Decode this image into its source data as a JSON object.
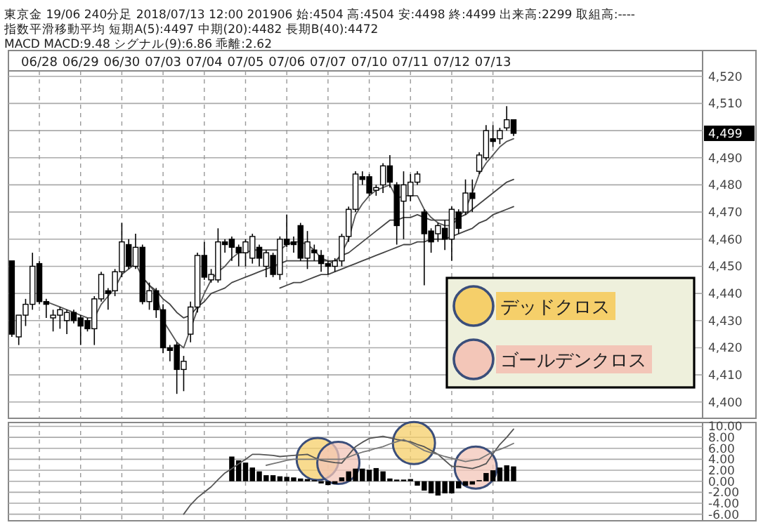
{
  "chart_data": [
    {
      "type": "candlestick",
      "title": "東京金 19/06 240分足 2018/07/13 12:00 201906 始:4504 高:4504 安:4498 終:4499 出来高:2299 取組高:----",
      "subtitle": "指数平滑移動平均 短期A(5):4497 中期(20):4482 長期B(40):4472",
      "annotations": [
        "MACD MACD:9.48 シグナル(9):6.86 乖離:2.62",
        "4,499",
        "デッドクロス",
        "ゴールデンクロス"
      ],
      "categories": [
        null,
        null,
        null,
        null,
        "06/28",
        null,
        null,
        null,
        null,
        null,
        "06/29",
        null,
        null,
        null,
        null,
        null,
        "06/30",
        null,
        null,
        null,
        null,
        null,
        "07/03",
        null,
        null,
        null,
        null,
        null,
        "07/04",
        null,
        null,
        null,
        null,
        null,
        "07/05",
        null,
        null,
        null,
        null,
        null,
        "07/06",
        null,
        null,
        null,
        null,
        null,
        "07/07",
        null,
        null,
        null,
        null,
        null,
        "07/10",
        null,
        null,
        null,
        null,
        null,
        "07/11",
        null,
        null,
        null,
        null,
        null,
        "07/12",
        null,
        null,
        null,
        null,
        null,
        "07/13",
        null,
        null,
        null,
        null,
        null,
        null,
        null,
        null,
        null,
        null,
        null,
        null,
        null,
        null,
        null,
        null,
        null,
        null,
        null,
        null,
        null,
        null,
        null,
        null,
        null,
        null,
        null,
        null,
        null,
        null
      ],
      "color": "#000000",
      "ohlc": [
        [
          4452,
          4452,
          4424,
          4425
        ],
        [
          4424,
          4432,
          4421,
          4432
        ],
        [
          4432,
          4438,
          4428,
          4436
        ],
        [
          4436,
          4455,
          4434,
          4450
        ],
        [
          4451,
          4452,
          4436,
          4437
        ],
        [
          4437,
          4438,
          4431,
          4436
        ],
        [
          4431,
          4434,
          4426,
          4432
        ],
        [
          4432,
          4435,
          4427,
          4434
        ],
        [
          4430,
          4434,
          4425,
          4433
        ],
        [
          4433,
          4434,
          4429,
          4430
        ],
        [
          4431,
          4432,
          4421,
          4428
        ],
        [
          4430,
          4431,
          4426,
          4427
        ],
        [
          4427,
          4439,
          4421,
          4438
        ],
        [
          4438,
          4448,
          4437,
          4447
        ],
        [
          4441,
          4442,
          4434,
          4440
        ],
        [
          4441,
          4449,
          4439,
          4448
        ],
        [
          4448,
          4466,
          4446,
          4459
        ],
        [
          4458,
          4460,
          4449,
          4450
        ],
        [
          4450,
          4462,
          4449,
          4457
        ],
        [
          4457,
          4458,
          4436,
          4437
        ],
        [
          4437,
          4444,
          4434,
          4441
        ],
        [
          4441,
          4442,
          4431,
          4434
        ],
        [
          4434,
          4436,
          4418,
          4420
        ],
        [
          4420,
          4421,
          4415,
          4419
        ],
        [
          4421,
          4422,
          4403,
          4412
        ],
        [
          4412,
          4417,
          4404,
          4415
        ],
        [
          4425,
          4437,
          4422,
          4435
        ],
        [
          4435,
          4455,
          4433,
          4454
        ],
        [
          4454,
          4459,
          4445,
          4446
        ],
        [
          4445,
          4449,
          4444,
          4447
        ],
        [
          4445,
          4464,
          4444,
          4459
        ],
        [
          4459,
          4460,
          4455,
          4458
        ],
        [
          4460,
          4461,
          4452,
          4457
        ],
        [
          4457,
          4458,
          4450,
          4455
        ],
        [
          4455,
          4460,
          4450,
          4459
        ],
        [
          4453,
          4462,
          4451,
          4461
        ],
        [
          4457,
          4458,
          4450,
          4453
        ],
        [
          4450,
          4456,
          4446,
          4455
        ],
        [
          4454,
          4455,
          4446,
          4447
        ],
        [
          4447,
          4461,
          4445,
          4460
        ],
        [
          4460,
          4469,
          4457,
          4458
        ],
        [
          4459,
          4461,
          4455,
          4458
        ],
        [
          4465,
          4466,
          4452,
          4453
        ],
        [
          4453,
          4463,
          4449,
          4459
        ],
        [
          4456,
          4458,
          4452,
          4455
        ],
        [
          4454,
          4456,
          4448,
          4451
        ],
        [
          4451,
          4452,
          4447,
          4450
        ],
        [
          4450,
          4453,
          4448,
          4452
        ],
        [
          4452,
          4462,
          4450,
          4461
        ],
        [
          4461,
          4472,
          4459,
          4471
        ],
        [
          4471,
          4485,
          4470,
          4484
        ],
        [
          4483,
          4485,
          4480,
          4482
        ],
        [
          4483,
          4484,
          4476,
          4477
        ],
        [
          4478,
          4480,
          4476,
          4479
        ],
        [
          4480,
          4488,
          4477,
          4487
        ],
        [
          4487,
          4491,
          4479,
          4481
        ],
        [
          4480,
          4481,
          4458,
          4465
        ],
        [
          4474,
          4485,
          4460,
          4480
        ],
        [
          4476,
          4484,
          4474,
          4481
        ],
        [
          4481,
          4485,
          4480,
          4484
        ],
        [
          4470,
          4471,
          4443,
          4462
        ],
        [
          4463,
          4464,
          4455,
          4459
        ],
        [
          4462,
          4466,
          4459,
          4465
        ],
        [
          4464,
          4467,
          4456,
          4460
        ],
        [
          4460,
          4472,
          4452,
          4471
        ],
        [
          4470,
          4471,
          4462,
          4464
        ],
        [
          4470,
          4482,
          4469,
          4477
        ],
        [
          4477,
          4482,
          4470,
          4475
        ],
        [
          4485,
          4492,
          4484,
          4491
        ],
        [
          4490,
          4502,
          4489,
          4500
        ],
        [
          4497,
          4502,
          4494,
          4496
        ],
        [
          4497,
          4501,
          4495,
          4500
        ],
        [
          4501,
          4509,
          4500,
          4504
        ],
        [
          4504,
          4504,
          4498,
          4499
        ],
        null,
        null,
        null,
        null,
        null,
        null,
        null,
        null,
        null,
        null,
        null,
        null,
        null,
        null,
        null,
        null,
        null,
        null,
        null,
        null,
        null,
        null,
        null,
        null,
        null,
        null,
        null
      ],
      "series": [
        {
          "type": "line",
          "color": "#555555",
          "values": [
            null,
            null,
            null,
            null,
            null,
            4437,
            4436,
            4435,
            4434,
            4433,
            4432,
            4431,
            4431,
            4436,
            4439,
            4442,
            4447,
            4449,
            4451,
            4446,
            4443,
            4440,
            4430,
            4426,
            4422,
            4420,
            4427,
            4434,
            4440,
            4445,
            4448,
            4450,
            4453,
            4455,
            4455,
            4456,
            4456,
            4456,
            4456,
            4456,
            4458,
            4459,
            4459,
            4458,
            4456,
            4453,
            4452,
            4451,
            4455,
            4460,
            4469,
            4473,
            4476,
            4478,
            4479,
            4480,
            4475,
            4476,
            4476,
            4476,
            4471,
            4468,
            4466,
            4465,
            4465,
            4468,
            4471,
            4477,
            4484,
            4488,
            4491,
            4494,
            4496,
            4497,
            null,
            null,
            null,
            null,
            null,
            null,
            null,
            null,
            null,
            null,
            null,
            null,
            null,
            null,
            null,
            null,
            null,
            null,
            null,
            null,
            null,
            null,
            null,
            null,
            null,
            null,
            null
          ]
        },
        {
          "type": "line",
          "color": "#444444",
          "values": [
            null,
            null,
            null,
            null,
            null,
            null,
            null,
            null,
            null,
            null,
            null,
            null,
            null,
            null,
            null,
            null,
            null,
            null,
            null,
            4446,
            4443,
            4441,
            4438,
            4436,
            4433,
            4431,
            4432,
            4435,
            4437,
            4440,
            4441,
            4442,
            4444,
            4445,
            4446,
            4447,
            4448,
            4449,
            4450,
            4451,
            4452,
            4452,
            4452,
            4452,
            4452,
            4452,
            4452,
            4452,
            4454,
            4455,
            4457,
            4459,
            4461,
            4463,
            4465,
            4467,
            4467,
            4468,
            4468,
            4469,
            4468,
            4467,
            4467,
            4467,
            4467,
            4468,
            4469,
            4471,
            4473,
            4475,
            4477,
            4479,
            4481,
            4482,
            null,
            null,
            null,
            null,
            null,
            null,
            null,
            null,
            null,
            null,
            null,
            null,
            null,
            null,
            null,
            null,
            null,
            null,
            null,
            null,
            null,
            null,
            null,
            null,
            null,
            null,
            null
          ]
        },
        {
          "type": "line",
          "color": "#444444",
          "values": [
            null,
            null,
            null,
            null,
            null,
            null,
            null,
            null,
            null,
            null,
            null,
            null,
            null,
            null,
            null,
            null,
            null,
            null,
            null,
            null,
            null,
            null,
            null,
            null,
            null,
            null,
            null,
            null,
            null,
            null,
            null,
            null,
            null,
            null,
            null,
            null,
            null,
            null,
            null,
            4442,
            4443,
            4444,
            4444,
            4445,
            4446,
            4447,
            4447,
            4448,
            4449,
            4450,
            4451,
            4452,
            4453,
            4454,
            4455,
            4456,
            4457,
            4458,
            4458,
            4459,
            4459,
            4460,
            4460,
            4460,
            4461,
            4462,
            4463,
            4464,
            4466,
            4467,
            4469,
            4470,
            4471,
            4472,
            null,
            null,
            null,
            null,
            null,
            null,
            null,
            null,
            null,
            null,
            null,
            null,
            null,
            null,
            null,
            null,
            null,
            null,
            null,
            null,
            null,
            null,
            null,
            null,
            null,
            null,
            null
          ]
        }
      ],
      "ylim": [
        4394,
        4522
      ],
      "yticks": [
        {
          "value": 4400,
          "label": "4,400"
        },
        {
          "value": 4410,
          "label": "4,410"
        },
        {
          "value": 4420,
          "label": "4,420"
        },
        {
          "value": 4430,
          "label": "4,430"
        },
        {
          "value": 4440,
          "label": "4,440"
        },
        {
          "value": 4450,
          "label": "4,450"
        },
        {
          "value": 4460,
          "label": "4,460"
        },
        {
          "value": 4470,
          "label": "4,470"
        },
        {
          "value": 4480,
          "label": "4,480"
        },
        {
          "value": 4490,
          "label": "4,490"
        },
        {
          "value": 4500,
          "label": null
        },
        {
          "value": 4510,
          "label": "4,510"
        },
        {
          "value": 4520,
          "label": "4,520"
        }
      ],
      "grid": true
    },
    {
      "type": "bar",
      "tick_labels": "y",
      "categories": [
        null,
        null,
        null,
        null,
        null,
        null,
        null,
        null,
        null,
        null,
        null,
        null,
        null,
        null,
        null,
        null,
        null,
        null,
        null,
        null,
        null,
        null,
        null,
        null,
        null,
        null,
        null,
        null,
        null,
        null,
        null,
        null,
        null,
        null,
        null,
        null,
        null,
        null,
        null,
        null,
        null,
        null,
        null,
        null,
        null,
        null,
        null,
        null,
        null,
        null,
        null,
        null,
        null,
        null,
        null,
        null,
        null,
        null,
        null,
        null,
        null,
        null,
        null,
        null,
        null,
        null,
        null,
        null,
        null,
        null,
        null,
        null,
        null,
        null,
        null,
        null,
        null,
        null,
        null,
        null,
        null,
        null,
        null,
        null,
        null,
        null,
        null,
        null,
        null,
        null,
        null,
        null,
        null,
        null,
        null,
        null,
        null,
        null,
        null,
        null,
        null
      ],
      "series": [
        {
          "type": "bar",
          "color": "#000000",
          "values": [
            null,
            null,
            null,
            null,
            null,
            null,
            null,
            null,
            null,
            null,
            null,
            null,
            null,
            null,
            null,
            null,
            null,
            null,
            null,
            null,
            null,
            null,
            null,
            null,
            null,
            null,
            null,
            null,
            null,
            null,
            null,
            null,
            4.5,
            3.8,
            3.4,
            2.5,
            1.8,
            1.1,
            1.1,
            0.9,
            0.8,
            0.7,
            0.5,
            0.4,
            0.2,
            -0.4,
            -0.7,
            -0.5,
            0.7,
            1.8,
            2.3,
            2.3,
            2.1,
            2.4,
            1.8,
            0.5,
            0.3,
            0.3,
            0.4,
            -0.8,
            -1.7,
            -2.2,
            -2.6,
            -2.2,
            -2.2,
            -1.3,
            -0.8,
            -0.6,
            0.2,
            1.5,
            2.0,
            2.5,
            2.9,
            2.7,
            null,
            null,
            null,
            null,
            null,
            null,
            null,
            null,
            null,
            null,
            null,
            null,
            null,
            null,
            null,
            null,
            null,
            null,
            null,
            null,
            null,
            null,
            null,
            null,
            null,
            null,
            null
          ]
        },
        {
          "type": "line",
          "color": "#555555",
          "values": [
            null,
            null,
            null,
            null,
            null,
            null,
            null,
            null,
            null,
            null,
            null,
            null,
            null,
            null,
            null,
            null,
            null,
            null,
            null,
            null,
            null,
            null,
            null,
            null,
            null,
            -6.0,
            -4.3,
            -3.0,
            -2.0,
            -1.0,
            0.3,
            1.5,
            2.3,
            3.2,
            4.0,
            4.9,
            4.9,
            4.8,
            4.7,
            4.5,
            4.6,
            4.7,
            4.8,
            4.9,
            4.3,
            3.8,
            3.6,
            3.4,
            3.3,
            4.8,
            6.3,
            7.1,
            7.8,
            8.0,
            8.2,
            7.9,
            7.6,
            7.4,
            7.2,
            6.7,
            6.3,
            5.6,
            4.9,
            3.8,
            2.7,
            2.7,
            2.5,
            2.3,
            2.7,
            3.2,
            5.0,
            6.7,
            8.0,
            9.5,
            null,
            null,
            null,
            null,
            null,
            null,
            null,
            null,
            null,
            null,
            null,
            null,
            null,
            null,
            null,
            null,
            null,
            null,
            null,
            null,
            null,
            null,
            null,
            null,
            null,
            null,
            null
          ]
        },
        {
          "type": "line",
          "color": "#777777",
          "values": [
            null,
            null,
            null,
            null,
            null,
            null,
            null,
            null,
            null,
            null,
            null,
            null,
            null,
            null,
            null,
            null,
            null,
            null,
            null,
            null,
            null,
            null,
            null,
            null,
            null,
            null,
            null,
            null,
            null,
            null,
            null,
            null,
            null,
            null,
            null,
            null,
            null,
            2.9,
            3.2,
            3.5,
            3.8,
            4.0,
            4.0,
            4.0,
            4.0,
            4.0,
            4.0,
            4.0,
            4.0,
            4.4,
            4.9,
            5.3,
            5.6,
            6.0,
            6.3,
            6.8,
            7.2,
            7.6,
            7.0,
            6.3,
            5.6,
            5.2,
            4.9,
            4.5,
            4.2,
            3.9,
            3.6,
            3.8,
            4.0,
            4.7,
            5.4,
            5.8,
            6.3,
            6.9,
            null,
            null,
            null,
            null,
            null,
            null,
            null,
            null,
            null,
            null,
            null,
            null,
            null,
            null,
            null,
            null,
            null,
            null,
            null,
            null,
            null,
            null,
            null,
            null,
            null,
            null,
            null
          ]
        }
      ],
      "ylim": [
        -7.2,
        10.7
      ],
      "yticks": [
        {
          "value": 10,
          "label": "10.00"
        },
        {
          "value": 8,
          "label": "8.00"
        },
        {
          "value": 6,
          "label": "6.00"
        },
        {
          "value": 4,
          "label": "4.00"
        },
        {
          "value": 2,
          "label": "2.00"
        },
        {
          "value": 0,
          "label": "0.00"
        },
        {
          "value": -2,
          "label": "-2.00"
        },
        {
          "value": -4,
          "label": "-4.00"
        },
        {
          "value": -6,
          "label": "-6.00"
        }
      ],
      "grid": true
    }
  ]
}
